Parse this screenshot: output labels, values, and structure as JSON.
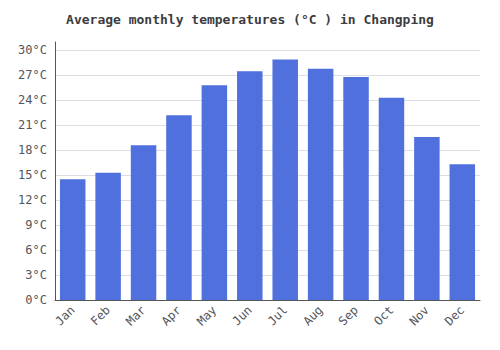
{
  "chart_data": {
    "type": "bar",
    "title": "Average monthly temperatures (°C ) in Changping",
    "categories": [
      "Jan",
      "Feb",
      "Mar",
      "Apr",
      "May",
      "Jun",
      "Jul",
      "Aug",
      "Sep",
      "Oct",
      "Nov",
      "Dec"
    ],
    "values": [
      14.5,
      15.3,
      18.6,
      22.2,
      25.8,
      27.5,
      28.9,
      27.8,
      26.8,
      24.3,
      19.6,
      16.3
    ],
    "ylim": [
      0,
      31
    ],
    "yticks": [
      {
        "value": 0,
        "label": "0°C"
      },
      {
        "value": 3,
        "label": "3°C"
      },
      {
        "value": 6,
        "label": "6°C"
      },
      {
        "value": 9,
        "label": "9°C"
      },
      {
        "value": 12,
        "label": "12°C"
      },
      {
        "value": 15,
        "label": "15°C"
      },
      {
        "value": 18,
        "label": "18°C"
      },
      {
        "value": 21,
        "label": "21°C"
      },
      {
        "value": 24,
        "label": "24°C"
      },
      {
        "value": 27,
        "label": "27°C"
      },
      {
        "value": 30,
        "label": "30°C"
      }
    ],
    "grid": true
  }
}
